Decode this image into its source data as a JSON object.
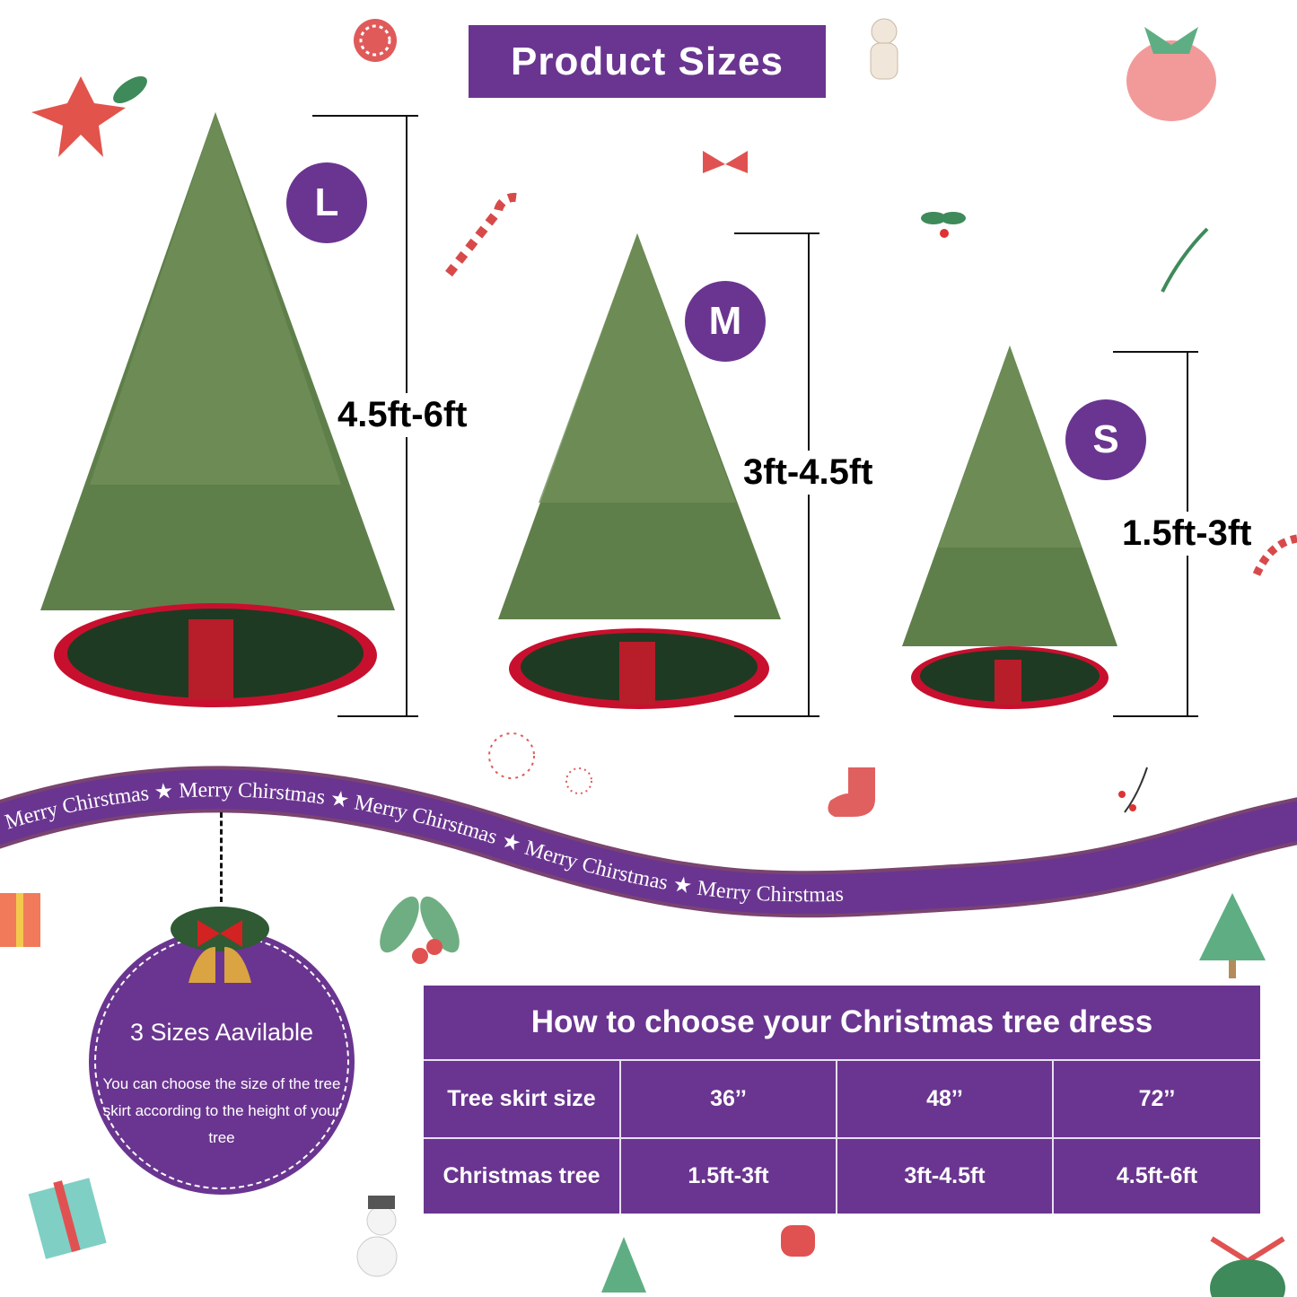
{
  "title": "Product Sizes",
  "colors": {
    "brand_purple": "#6a3590",
    "skirt_red": "#c8102e",
    "skirt_green": "#1f3a22"
  },
  "sizes": [
    {
      "letter": "L",
      "range": "4.5ft-6ft"
    },
    {
      "letter": "M",
      "range": "3ft-4.5ft"
    },
    {
      "letter": "S",
      "range": "1.5ft-3ft"
    }
  ],
  "ribbon": {
    "items": [
      "Merry Chirstmas",
      "Merry Chirstmas",
      "Merry Chirstmas",
      "Merry Chirstmas",
      "Merry Chirstmas"
    ]
  },
  "badge": {
    "title": "3 Sizes Aavilable",
    "text": "You can choose the size of the tree skirt according to the height of your tree"
  },
  "table": {
    "title": "How to choose your Christmas tree dress",
    "rows": [
      {
        "label": "Tree skirt size",
        "values": [
          "36’’",
          "48’’",
          "72’’"
        ]
      },
      {
        "label": "Christmas tree",
        "values": [
          "1.5ft-3ft",
          "3ft-4.5ft",
          "4.5ft-6ft"
        ]
      }
    ]
  }
}
